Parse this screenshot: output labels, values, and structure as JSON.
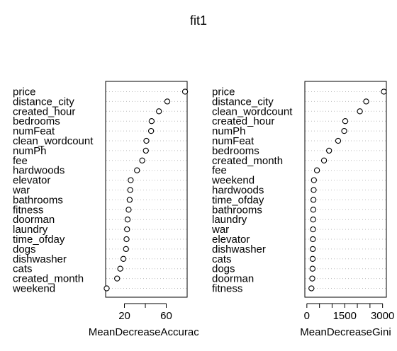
{
  "title": "fit1",
  "chart_data": [
    {
      "type": "scatter",
      "xlabel": "MeanDecreaseAccuracy",
      "xlim": [
        2,
        80
      ],
      "xticks": [
        20,
        40,
        60
      ],
      "xtick_labels": [
        "20",
        "",
        "60"
      ],
      "grid": "dotted horizontal",
      "categories": [
        "price",
        "distance_city",
        "created_hour",
        "bedrooms",
        "numFeat",
        "clean_wordcount",
        "numPh",
        "fee",
        "hardwoods",
        "elevator",
        "war",
        "bathrooms",
        "fitness",
        "doorman",
        "laundry",
        "time_ofday",
        "dogs",
        "dishwasher",
        "cats",
        "created_month",
        "weekend"
      ],
      "values": [
        78,
        61,
        53,
        46,
        45.5,
        41,
        40.5,
        37,
        32,
        26,
        25.5,
        25,
        24,
        23,
        22.5,
        22,
        21.5,
        19,
        16,
        13,
        3
      ]
    },
    {
      "type": "scatter",
      "xlabel": "MeanDecreaseGini",
      "xlim": [
        -80,
        3150
      ],
      "xticks": [
        0,
        500,
        1000,
        1500,
        2000,
        2500,
        3000
      ],
      "xtick_labels": [
        "0",
        "",
        "",
        "1500",
        "",
        "",
        "3000"
      ],
      "grid": "dotted horizontal",
      "categories": [
        "price",
        "distance_city",
        "clean_wordcount",
        "created_hour",
        "numPh",
        "numFeat",
        "bedrooms",
        "created_month",
        "fee",
        "weekend",
        "hardwoods",
        "time_ofday",
        "bathrooms",
        "laundry",
        "war",
        "elevator",
        "dishwasher",
        "cats",
        "dogs",
        "doorman",
        "fitness"
      ],
      "values": [
        3050,
        2350,
        2100,
        1520,
        1480,
        1240,
        880,
        680,
        400,
        280,
        270,
        260,
        255,
        250,
        245,
        240,
        235,
        230,
        225,
        215,
        180
      ]
    }
  ]
}
